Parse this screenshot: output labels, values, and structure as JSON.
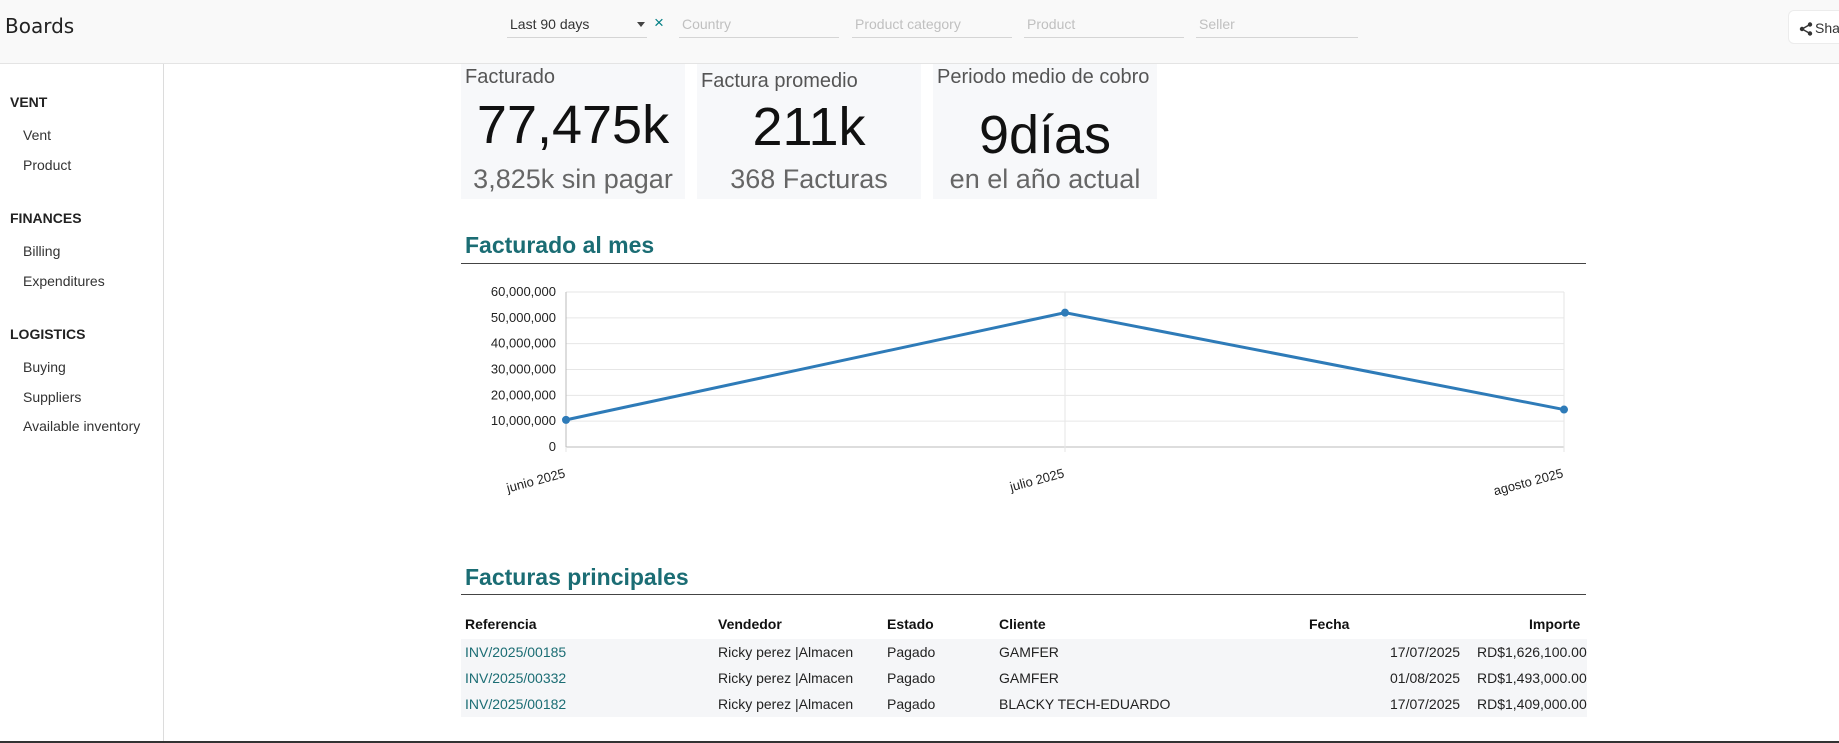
{
  "header": {
    "app_title": "Boards",
    "period_value": "Last 90 days",
    "clear_symbol": "×",
    "filters": [
      {
        "placeholder": "Country"
      },
      {
        "placeholder": "Product category"
      },
      {
        "placeholder": "Product"
      },
      {
        "placeholder": "Seller"
      }
    ],
    "share_label": "Sha"
  },
  "sidebar": {
    "sections": [
      {
        "title": "VENT",
        "items": [
          "Vent",
          "Product"
        ]
      },
      {
        "title": "FINANCES",
        "items": [
          "Billing",
          "Expenditures"
        ]
      },
      {
        "title": "LOGISTICS",
        "items": [
          "Buying",
          "Suppliers",
          "Available inventory"
        ]
      }
    ]
  },
  "kpis": [
    {
      "title": "Facturado",
      "value": "77,475k",
      "sub": "3,825k sin pagar"
    },
    {
      "title": "Factura promedio",
      "value": "211k",
      "sub": "368 Facturas"
    },
    {
      "title": "Periodo medio de cobro",
      "value": "9días",
      "sub": "en el año actual"
    }
  ],
  "chart_section_title": "Facturado al mes",
  "chart_data": {
    "type": "line",
    "categories": [
      "junio 2025",
      "julio 2025",
      "agosto 2025"
    ],
    "series": [
      {
        "values": [
          10500000,
          52000000,
          14500000
        ],
        "color": "#2e7bb8"
      }
    ],
    "yticks": [
      "0",
      "10,000,000",
      "20,000,000",
      "30,000,000",
      "40,000,000",
      "50,000,000",
      "60,000,000"
    ],
    "ylim": [
      0,
      60000000
    ],
    "grid": true
  },
  "table_section_title": "Facturas principales",
  "table": {
    "headers": [
      "Referencia",
      "Vendedor",
      "Estado",
      "Cliente",
      "Fecha",
      "Importe"
    ],
    "rows": [
      [
        "INV/2025/00185",
        "Ricky perez |Almacen",
        "Pagado",
        "GAMFER",
        "17/07/2025",
        "RD$1,626,100.00"
      ],
      [
        "INV/2025/00332",
        "Ricky perez |Almacen",
        "Pagado",
        "GAMFER",
        "01/08/2025",
        "RD$1,493,000.00"
      ],
      [
        "INV/2025/00182",
        "Ricky perez |Almacen",
        "Pagado",
        "BLACKY TECH-EDUARDO",
        "17/07/2025",
        "RD$1,409,000.00"
      ]
    ]
  },
  "colors": {
    "accent": "#1b6d74",
    "line": "#2e7bb8",
    "kpi_bg": "#f7f8fa"
  }
}
